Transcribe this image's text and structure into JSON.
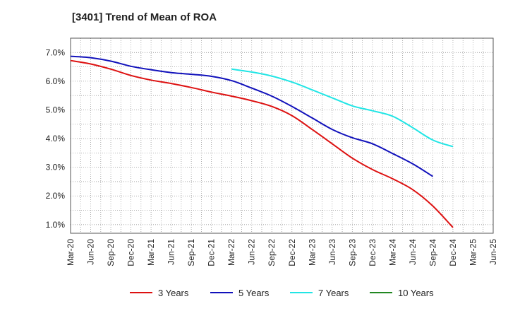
{
  "chart_data": {
    "type": "line",
    "title": "[3401]  Trend of Mean of ROA",
    "xlabel": "",
    "ylabel": "",
    "ylim": [
      0.7,
      7.5
    ],
    "y_ticks": [
      1.0,
      2.0,
      3.0,
      4.0,
      5.0,
      6.0,
      7.0
    ],
    "y_tick_labels": [
      "1.0%",
      "2.0%",
      "3.0%",
      "4.0%",
      "5.0%",
      "6.0%",
      "7.0%"
    ],
    "x_tick_labels": [
      "Mar-20",
      "Jun-20",
      "Sep-20",
      "Dec-20",
      "Mar-21",
      "Jun-21",
      "Sep-21",
      "Dec-21",
      "Mar-22",
      "Jun-22",
      "Sep-22",
      "Dec-22",
      "Mar-23",
      "Jun-23",
      "Sep-23",
      "Dec-23",
      "Mar-24",
      "Jun-24",
      "Sep-24",
      "Dec-24",
      "Mar-25",
      "Jun-25"
    ],
    "grid": true,
    "legend_position": "bottom",
    "series": [
      {
        "name": "3 Years",
        "color": "#dd1111",
        "start_index": 0,
        "values": [
          6.72,
          6.6,
          6.42,
          6.2,
          6.04,
          5.92,
          5.78,
          5.62,
          5.48,
          5.32,
          5.12,
          4.8,
          4.32,
          3.82,
          3.32,
          2.92,
          2.6,
          2.22,
          1.65,
          0.9
        ]
      },
      {
        "name": "5 Years",
        "color": "#1111bb",
        "start_index": 0,
        "values": [
          6.87,
          6.82,
          6.7,
          6.52,
          6.4,
          6.3,
          6.24,
          6.17,
          6.02,
          5.76,
          5.48,
          5.12,
          4.72,
          4.32,
          4.03,
          3.82,
          3.48,
          3.12,
          2.68
        ]
      },
      {
        "name": "7 Years",
        "color": "#22e5e5",
        "start_index": 8,
        "values": [
          6.42,
          6.32,
          6.18,
          5.97,
          5.7,
          5.42,
          5.14,
          4.97,
          4.78,
          4.38,
          3.95,
          3.72
        ]
      },
      {
        "name": "10 Years",
        "color": "#228822",
        "start_index": 0,
        "values": []
      }
    ]
  }
}
